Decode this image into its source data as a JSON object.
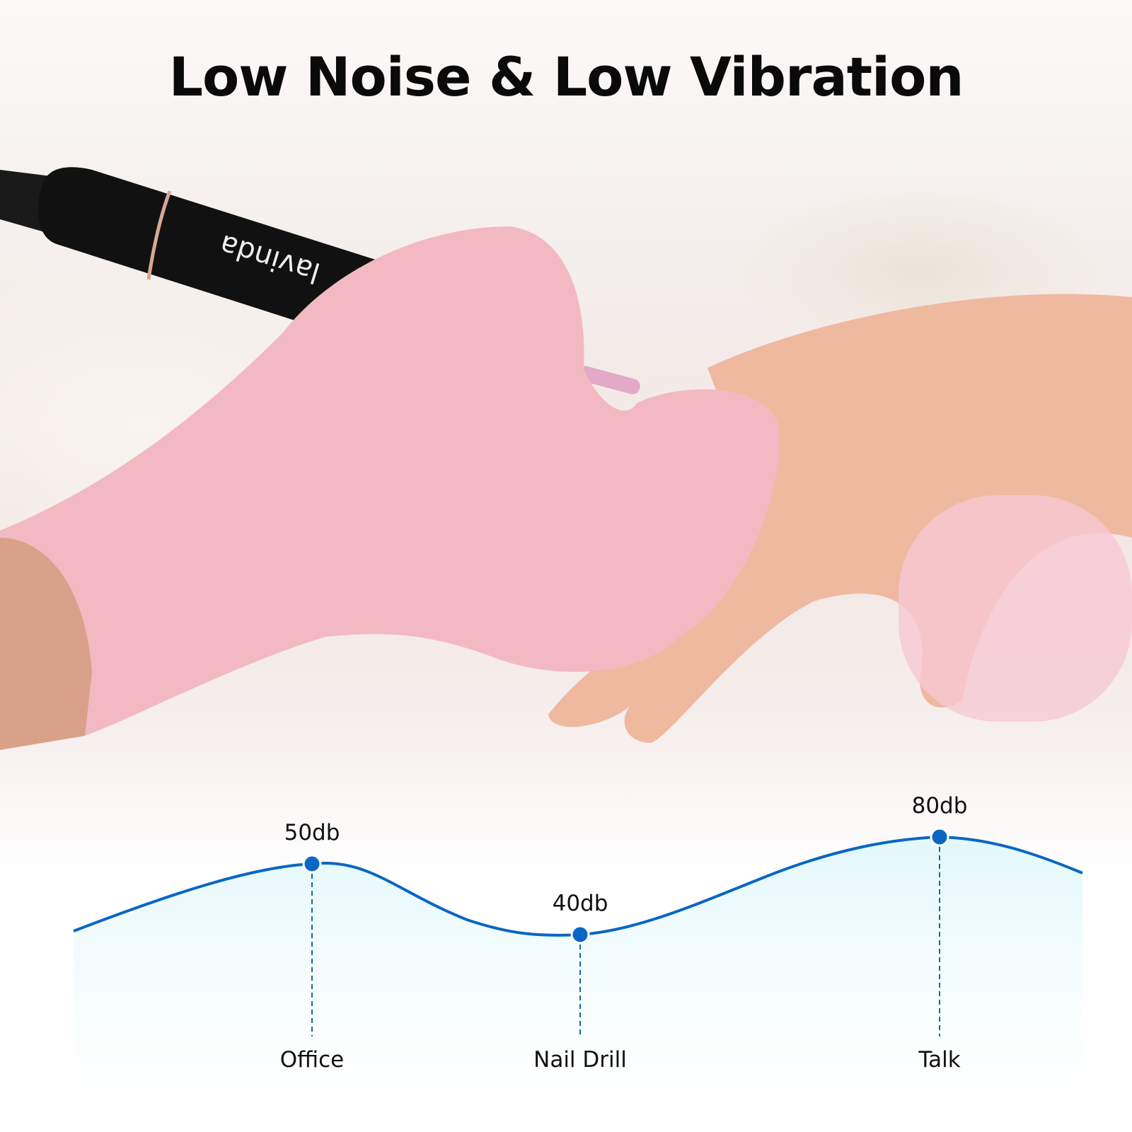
{
  "title": "Low Noise & Low Vibration",
  "brand_logo": "lavinda",
  "chart_data": {
    "type": "line",
    "categories": [
      "Office",
      "Nail Drill",
      "Talk"
    ],
    "values": [
      50,
      40,
      80
    ],
    "value_labels": [
      "50db",
      "40db",
      "80db"
    ],
    "unit": "db",
    "colors": {
      "line": "#0a66c2",
      "point": "#0a66c2",
      "fill": "#e6f9fd"
    }
  }
}
